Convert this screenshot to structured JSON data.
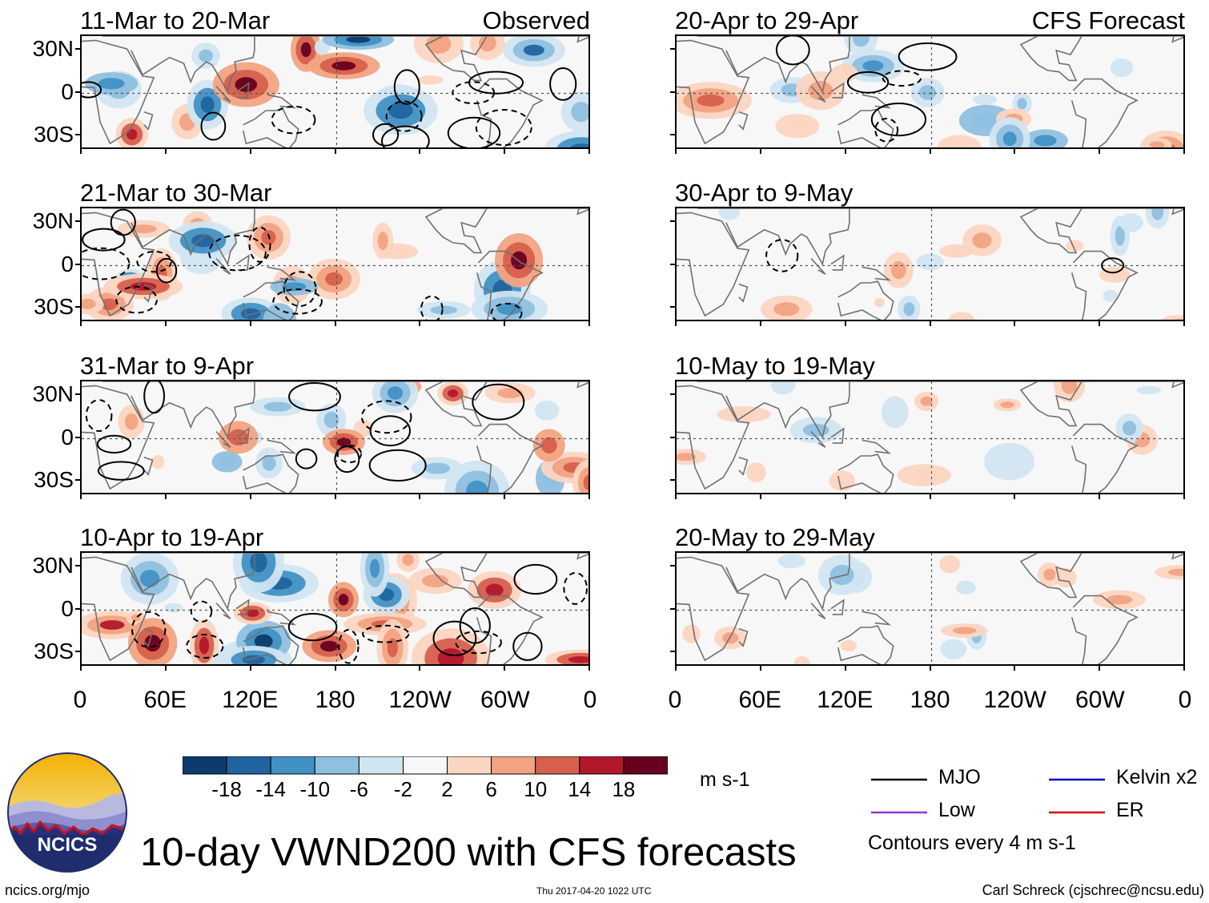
{
  "chart_data": {
    "type": "heatmap",
    "title": "10-day VWND200 with CFS forecasts",
    "variable": "VWND200",
    "units": "m s-1",
    "observed_label": "Observed",
    "forecast_label": "CFS Forecast",
    "x_ticks": [
      "0",
      "60E",
      "120E",
      "180",
      "120W",
      "60W",
      "0"
    ],
    "y_ticks": [
      "30N",
      "0",
      "30S"
    ],
    "panels": [
      {
        "period": "11-Mar to 20-Mar",
        "kind": "observed"
      },
      {
        "period": "21-Mar to 30-Mar",
        "kind": "observed"
      },
      {
        "period": "31-Mar to 9-Apr",
        "kind": "observed"
      },
      {
        "period": "10-Apr to 19-Apr",
        "kind": "observed"
      },
      {
        "period": "20-Apr to 29-Apr",
        "kind": "forecast"
      },
      {
        "period": "30-Apr to 9-May",
        "kind": "forecast"
      },
      {
        "period": "10-May to 19-May",
        "kind": "forecast"
      },
      {
        "period": "20-May to 29-May",
        "kind": "forecast"
      }
    ],
    "colorbar": {
      "labels": [
        "-18",
        "-14",
        "-10",
        "-6",
        "-2",
        "2",
        "6",
        "10",
        "14",
        "18"
      ],
      "colors": [
        "#0d3b6e",
        "#21649f",
        "#4291c4",
        "#8fc0df",
        "#d1e5f1",
        "#f7f7f7",
        "#fbd5c1",
        "#f2a382",
        "#d6604d",
        "#b2182b",
        "#68001f"
      ]
    },
    "legend": [
      {
        "name": "MJO",
        "color": "#000000"
      },
      {
        "name": "Kelvin x2",
        "color": "#0000cc"
      },
      {
        "name": "Low",
        "color": "#9933cc"
      },
      {
        "name": "ER",
        "color": "#dd0000"
      }
    ],
    "contour_note": "Contours every 4 m s-1"
  },
  "footer": {
    "logo_text": "NCICS",
    "url": "ncics.org/mjo",
    "timestamp": "Thu 2017-04-20 1022 UTC",
    "author": "Carl Schreck (cjschrec@ncsu.edu)"
  }
}
